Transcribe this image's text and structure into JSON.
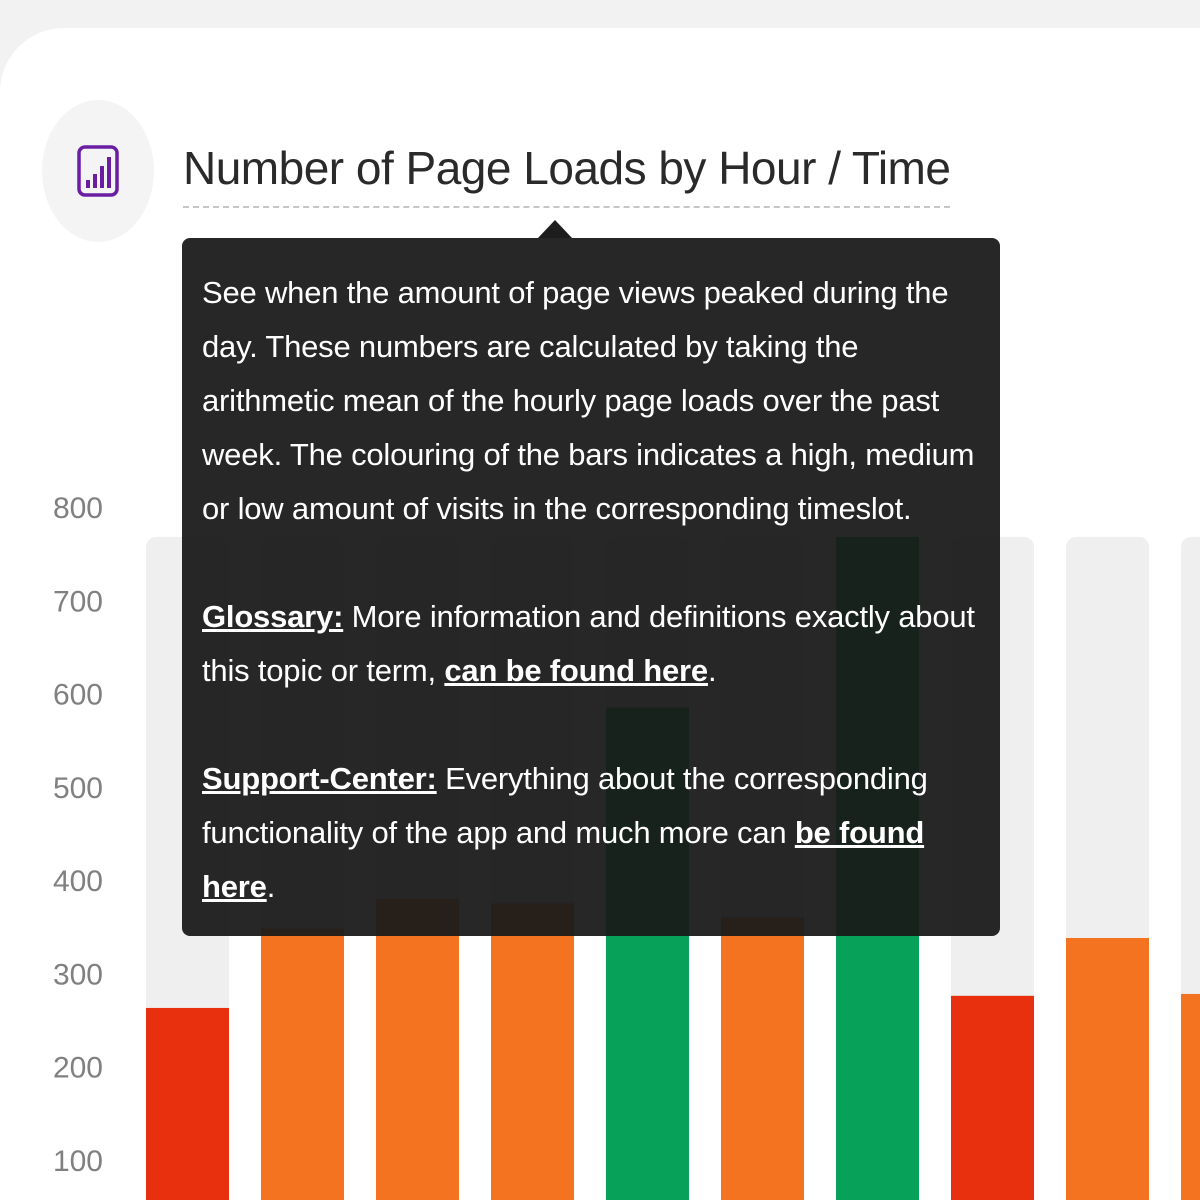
{
  "header": {
    "title": "Number of Page Loads by Hour / Time",
    "icon": "bar-chart-icon",
    "icon_color": "#6a1fa3"
  },
  "tooltip": {
    "description": "See when the amount of page views peaked during the day. These numbers are calculated by taking the arithmetic mean of the hourly page loads over the past week. The colouring of the bars indicates a high, medium or low amount of visits in the corresponding timeslot.",
    "glossary_label": "Glossary:",
    "glossary_text": " More information and definitions exactly about this topic or term, ",
    "glossary_link": "can be found here",
    "glossary_end": ".",
    "support_label": "Support-Center:",
    "support_text": " Everything about the corresponding functionality of the app and much more can ",
    "support_link": "be found here",
    "support_end": "."
  },
  "colors": {
    "low": "#e8300e",
    "medium": "#f47321",
    "high": "#07a15a",
    "track": "#efefef"
  },
  "chart_data": {
    "type": "bar",
    "y_ticks": [
      "800",
      "700",
      "600",
      "500",
      "400",
      "300",
      "200",
      "100"
    ],
    "ylim": [
      100,
      800
    ],
    "track_max": 768,
    "values": [
      {
        "value": 263,
        "level": "low"
      },
      {
        "value": 348,
        "level": "medium"
      },
      {
        "value": 380,
        "level": "medium"
      },
      {
        "value": 375,
        "level": "medium"
      },
      {
        "value": 585,
        "level": "high"
      },
      {
        "value": 360,
        "level": "medium"
      },
      {
        "value": 768,
        "level": "high"
      },
      {
        "value": 276,
        "level": "low"
      },
      {
        "value": 338,
        "level": "medium"
      },
      {
        "value": 278,
        "level": "medium"
      }
    ]
  }
}
